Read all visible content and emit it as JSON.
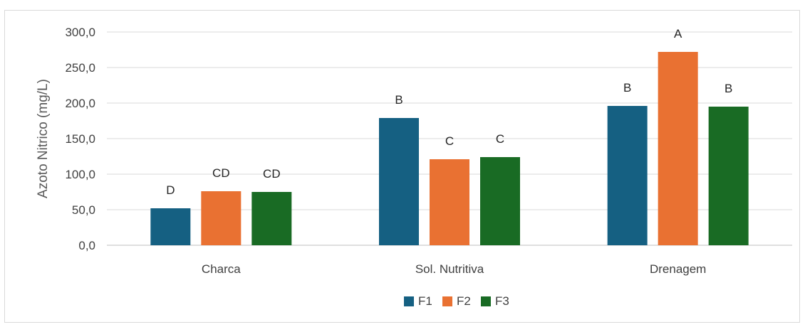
{
  "chart_data": {
    "type": "bar",
    "title": "",
    "xlabel": "",
    "ylabel": "Azoto Nitrico (mg/L)",
    "ylim": [
      0,
      300
    ],
    "ytick_step": 50,
    "ytick_labels": [
      "0,0",
      "50,0",
      "100,0",
      "150,0",
      "200,0",
      "250,0",
      "300,0"
    ],
    "categories": [
      "Charca",
      "Sol. Nutritiva",
      "Drenagem"
    ],
    "series": [
      {
        "name": "F1",
        "color": "#156082",
        "values": [
          52,
          179,
          196
        ],
        "labels": [
          "D",
          "B",
          "B"
        ]
      },
      {
        "name": "F2",
        "color": "#E97132",
        "values": [
          76,
          121,
          272
        ],
        "labels": [
          "CD",
          "C",
          "A"
        ]
      },
      {
        "name": "F3",
        "color": "#196B24",
        "values": [
          75,
          124,
          195
        ],
        "labels": [
          "CD",
          "C",
          "B"
        ]
      }
    ],
    "grid": true,
    "legend_position": "bottom"
  }
}
